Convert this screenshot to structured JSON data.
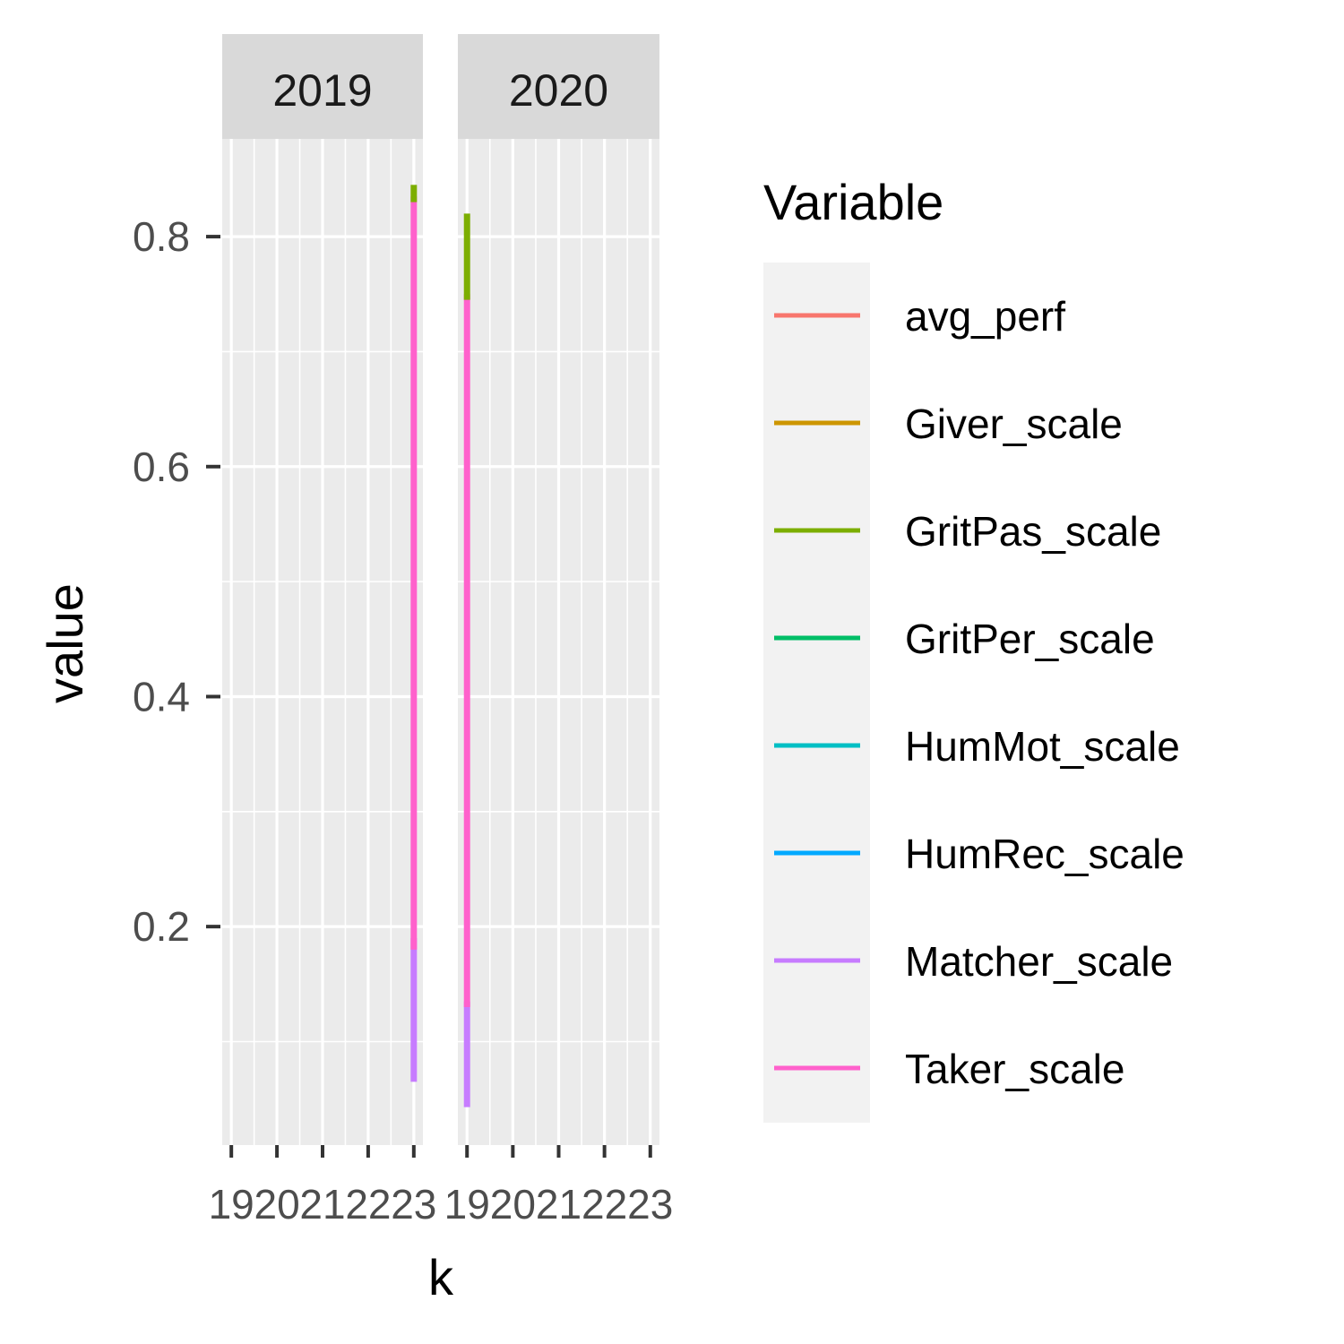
{
  "chart_data": {
    "type": "line",
    "xlabel": "k",
    "ylabel": "value",
    "x_ticks": [
      19,
      20,
      21,
      22,
      23
    ],
    "x_tick_labels": [
      "19",
      "20",
      "21",
      "22",
      "23"
    ],
    "xlim": [
      18.8,
      23.2
    ],
    "y_ticks": [
      0.2,
      0.4,
      0.6,
      0.8
    ],
    "y_tick_labels": [
      "0.2",
      "0.4",
      "0.6",
      "0.8"
    ],
    "ylim": [
      0.01,
      0.885
    ],
    "grid": true,
    "facets": [
      {
        "label": "2019",
        "segments": [
          {
            "variable": "Matcher_scale",
            "x": 23,
            "y": [
              0.065,
              0.19
            ]
          },
          {
            "variable": "Taker_scale",
            "x": 23,
            "y": [
              0.18,
              0.835
            ]
          },
          {
            "variable": "GritPas_scale",
            "x": 23,
            "y": [
              0.83,
              0.845
            ]
          }
        ]
      },
      {
        "label": "2020",
        "segments": [
          {
            "variable": "Matcher_scale",
            "x": 19,
            "y": [
              0.043,
              0.135
            ]
          },
          {
            "variable": "Taker_scale",
            "x": 19,
            "y": [
              0.13,
              0.75
            ]
          },
          {
            "variable": "GritPas_scale",
            "x": 19,
            "y": [
              0.745,
              0.82
            ]
          }
        ]
      }
    ],
    "legend": {
      "title": "Variable",
      "position": "right",
      "entries": [
        {
          "name": "avg_perf",
          "color": "#F8766D"
        },
        {
          "name": "Giver_scale",
          "color": "#CD9600"
        },
        {
          "name": "GritPas_scale",
          "color": "#7CAE00"
        },
        {
          "name": "GritPer_scale",
          "color": "#00BE67"
        },
        {
          "name": "HumMot_scale",
          "color": "#00BFC4"
        },
        {
          "name": "HumRec_scale",
          "color": "#00A9FF"
        },
        {
          "name": "Matcher_scale",
          "color": "#C77CFF"
        },
        {
          "name": "Taker_scale",
          "color": "#FF61CC"
        }
      ]
    }
  }
}
